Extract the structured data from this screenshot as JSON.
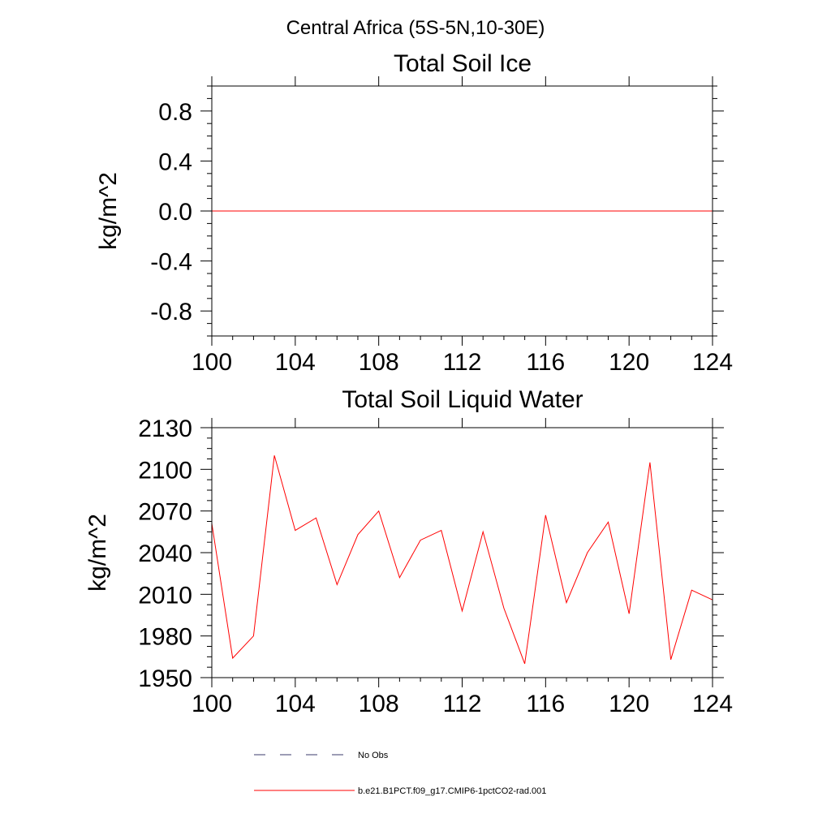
{
  "page": {
    "title": "Central Africa (5S-5N,10-30E)"
  },
  "colors": {
    "model_line": "#ff0000",
    "obs_line": "#3b3b6b",
    "axis": "#000000"
  },
  "chart_data": [
    {
      "type": "line",
      "title": "Total Soil Ice",
      "xlabel": "",
      "ylabel": "kg/m^2",
      "xlim": [
        100,
        124
      ],
      "ylim": [
        -1.0,
        1.0
      ],
      "x_ticks": [
        "100",
        "104",
        "108",
        "112",
        "116",
        "120",
        "124"
      ],
      "y_ticks": [
        "0.8",
        "0.4",
        "0.0",
        "-0.4",
        "-0.8"
      ],
      "grid": false,
      "series": [
        {
          "name": "b.e21.B1PCT.f09_g17.CMIP6-1pctCO2-rad.001",
          "color": "#ff0000",
          "x": [
            100,
            101,
            102,
            103,
            104,
            105,
            106,
            107,
            108,
            109,
            110,
            111,
            112,
            113,
            114,
            115,
            116,
            117,
            118,
            119,
            120,
            121,
            122,
            123,
            124
          ],
          "values": [
            0,
            0,
            0,
            0,
            0,
            0,
            0,
            0,
            0,
            0,
            0,
            0,
            0,
            0,
            0,
            0,
            0,
            0,
            0,
            0,
            0,
            0,
            0,
            0,
            0
          ]
        }
      ]
    },
    {
      "type": "line",
      "title": "Total Soil Liquid Water",
      "xlabel": "",
      "ylabel": "kg/m^2",
      "xlim": [
        100,
        124
      ],
      "ylim": [
        1950,
        2130
      ],
      "x_ticks": [
        "100",
        "104",
        "108",
        "112",
        "116",
        "120",
        "124"
      ],
      "y_ticks": [
        "2130",
        "2100",
        "2070",
        "2040",
        "2010",
        "1980",
        "1950"
      ],
      "grid": false,
      "series": [
        {
          "name": "b.e21.B1PCT.f09_g17.CMIP6-1pctCO2-rad.001",
          "color": "#ff0000",
          "x": [
            100,
            101,
            102,
            103,
            104,
            105,
            106,
            107,
            108,
            109,
            110,
            111,
            112,
            113,
            114,
            115,
            116,
            117,
            118,
            119,
            120,
            121,
            122,
            123,
            124
          ],
          "values": [
            2061,
            1964,
            1980,
            2110,
            2056,
            2065,
            2017,
            2053,
            2070,
            2022,
            2049,
            2056,
            1998,
            2055,
            2000,
            1960,
            2067,
            2004,
            2040,
            2062,
            1996,
            2105,
            1963,
            2013,
            2006
          ]
        }
      ]
    }
  ],
  "legend": {
    "placement": "bottom",
    "entries": [
      {
        "label": "No Obs",
        "style": "dashed",
        "color": "#3b3b6b"
      },
      {
        "label": "b.e21.B1PCT.f09_g17.CMIP6-1pctCO2-rad.001",
        "style": "solid",
        "color": "#ff0000"
      }
    ]
  }
}
